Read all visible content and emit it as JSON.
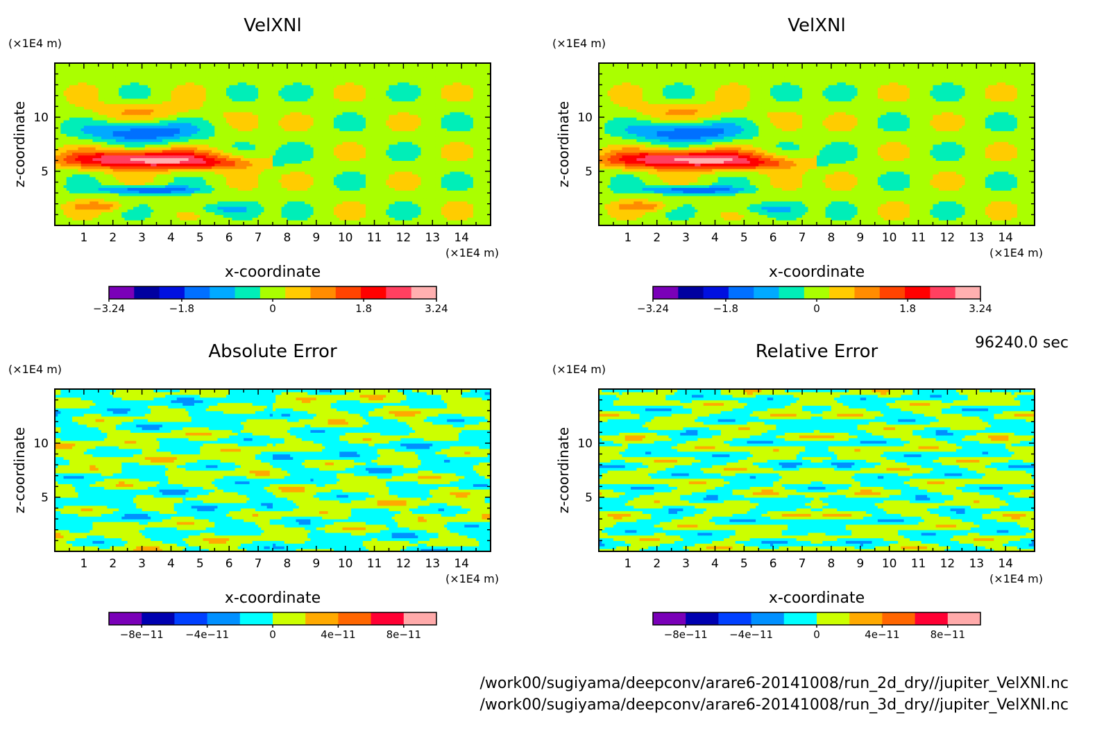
{
  "figure": {
    "time_label": "96240.0 sec",
    "file_paths": [
      "/work00/sugiyama/deepconv/arare6-20141008/run_2d_dry//jupiter_VelXNl.nc",
      "/work00/sugiyama/deepconv/arare6-20141008/run_3d_dry//jupiter_VelXNl.nc"
    ]
  },
  "chart_data": [
    {
      "type": "heatmap",
      "title": "VelXNl",
      "xlabel": "x-coordinate",
      "ylabel": "z-coordinate",
      "x_unit": "(×1E4 m)",
      "y_unit": "(×1E4 m)",
      "xlim": [
        0,
        15
      ],
      "ylim": [
        0,
        15
      ],
      "x_ticks": [
        "1",
        "2",
        "3",
        "4",
        "5",
        "6",
        "7",
        "8",
        "9",
        "10",
        "11",
        "12",
        "13",
        "14"
      ],
      "y_ticks": [
        "5",
        "10"
      ],
      "colorbar": {
        "ticks": [
          {
            "value": -3.24,
            "label": "−3.24"
          },
          {
            "value": -1.8,
            "label": "−1.8"
          },
          {
            "value": 0,
            "label": "0"
          },
          {
            "value": 1.8,
            "label": "1.8"
          },
          {
            "value": 3.24,
            "label": "3.24"
          }
        ],
        "range": [
          -3.24,
          3.24
        ],
        "colors": [
          "#7a00b8",
          "#0000a0",
          "#0010e0",
          "#0070ff",
          "#00aaff",
          "#00eeb8",
          "#aaff00",
          "#ffcc00",
          "#ff8c00",
          "#ff4400",
          "#ff0000",
          "#ff4060",
          "#ffb0b0"
        ]
      },
      "field": "velocity"
    },
    {
      "type": "heatmap",
      "title": "VelXNl",
      "xlabel": "x-coordinate",
      "ylabel": "z-coordinate",
      "x_unit": "(×1E4 m)",
      "y_unit": "(×1E4 m)",
      "xlim": [
        0,
        15
      ],
      "ylim": [
        0,
        15
      ],
      "x_ticks": [
        "1",
        "2",
        "3",
        "4",
        "5",
        "6",
        "7",
        "8",
        "9",
        "10",
        "11",
        "12",
        "13",
        "14"
      ],
      "y_ticks": [
        "5",
        "10"
      ],
      "colorbar": {
        "ticks": [
          {
            "value": -3.24,
            "label": "−3.24"
          },
          {
            "value": -1.8,
            "label": "−1.8"
          },
          {
            "value": 0,
            "label": "0"
          },
          {
            "value": 1.8,
            "label": "1.8"
          },
          {
            "value": 3.24,
            "label": "3.24"
          }
        ],
        "range": [
          -3.24,
          3.24
        ],
        "colors": [
          "#7a00b8",
          "#0000a0",
          "#0010e0",
          "#0070ff",
          "#00aaff",
          "#00eeb8",
          "#aaff00",
          "#ffcc00",
          "#ff8c00",
          "#ff4400",
          "#ff0000",
          "#ff4060",
          "#ffb0b0"
        ]
      },
      "field": "velocity"
    },
    {
      "type": "heatmap",
      "title": "Absolute Error",
      "xlabel": "x-coordinate",
      "ylabel": "z-coordinate",
      "x_unit": "(×1E4 m)",
      "y_unit": "(×1E4 m)",
      "xlim": [
        0,
        15
      ],
      "ylim": [
        0,
        15
      ],
      "x_ticks": [
        "1",
        "2",
        "3",
        "4",
        "5",
        "6",
        "7",
        "8",
        "9",
        "10",
        "11",
        "12",
        "13",
        "14"
      ],
      "y_ticks": [
        "5",
        "10"
      ],
      "colorbar": {
        "ticks": [
          {
            "value": -8e-11,
            "label": "−8e−11"
          },
          {
            "value": -4e-11,
            "label": "−4e−11"
          },
          {
            "value": 0,
            "label": "0"
          },
          {
            "value": 4e-11,
            "label": "4e−11"
          },
          {
            "value": 8e-11,
            "label": "8e−11"
          }
        ],
        "range": [
          -1e-10,
          1e-10
        ],
        "colors": [
          "#7a00b8",
          "#0000b0",
          "#0040ff",
          "#0090ff",
          "#00ffff",
          "#ccff00",
          "#ffaa00",
          "#ff6600",
          "#ff0033",
          "#ffaaaa"
        ]
      },
      "field": "error_abs"
    },
    {
      "type": "heatmap",
      "title": "Relative Error",
      "xlabel": "x-coordinate",
      "ylabel": "z-coordinate",
      "x_unit": "(×1E4 m)",
      "y_unit": "(×1E4 m)",
      "xlim": [
        0,
        15
      ],
      "ylim": [
        0,
        15
      ],
      "x_ticks": [
        "1",
        "2",
        "3",
        "4",
        "5",
        "6",
        "7",
        "8",
        "9",
        "10",
        "11",
        "12",
        "13",
        "14"
      ],
      "y_ticks": [
        "5",
        "10"
      ],
      "colorbar": {
        "ticks": [
          {
            "value": -8e-11,
            "label": "−8e−11"
          },
          {
            "value": -4e-11,
            "label": "−4e−11"
          },
          {
            "value": 0,
            "label": "0"
          },
          {
            "value": 4e-11,
            "label": "4e−11"
          },
          {
            "value": 8e-11,
            "label": "8e−11"
          }
        ],
        "range": [
          -1e-10,
          1e-10
        ],
        "colors": [
          "#7a00b8",
          "#0000b0",
          "#0040ff",
          "#0090ff",
          "#00ffff",
          "#ccff00",
          "#ffaa00",
          "#ff6600",
          "#ff0033",
          "#ffaaaa"
        ]
      },
      "field": "error_rel"
    }
  ]
}
